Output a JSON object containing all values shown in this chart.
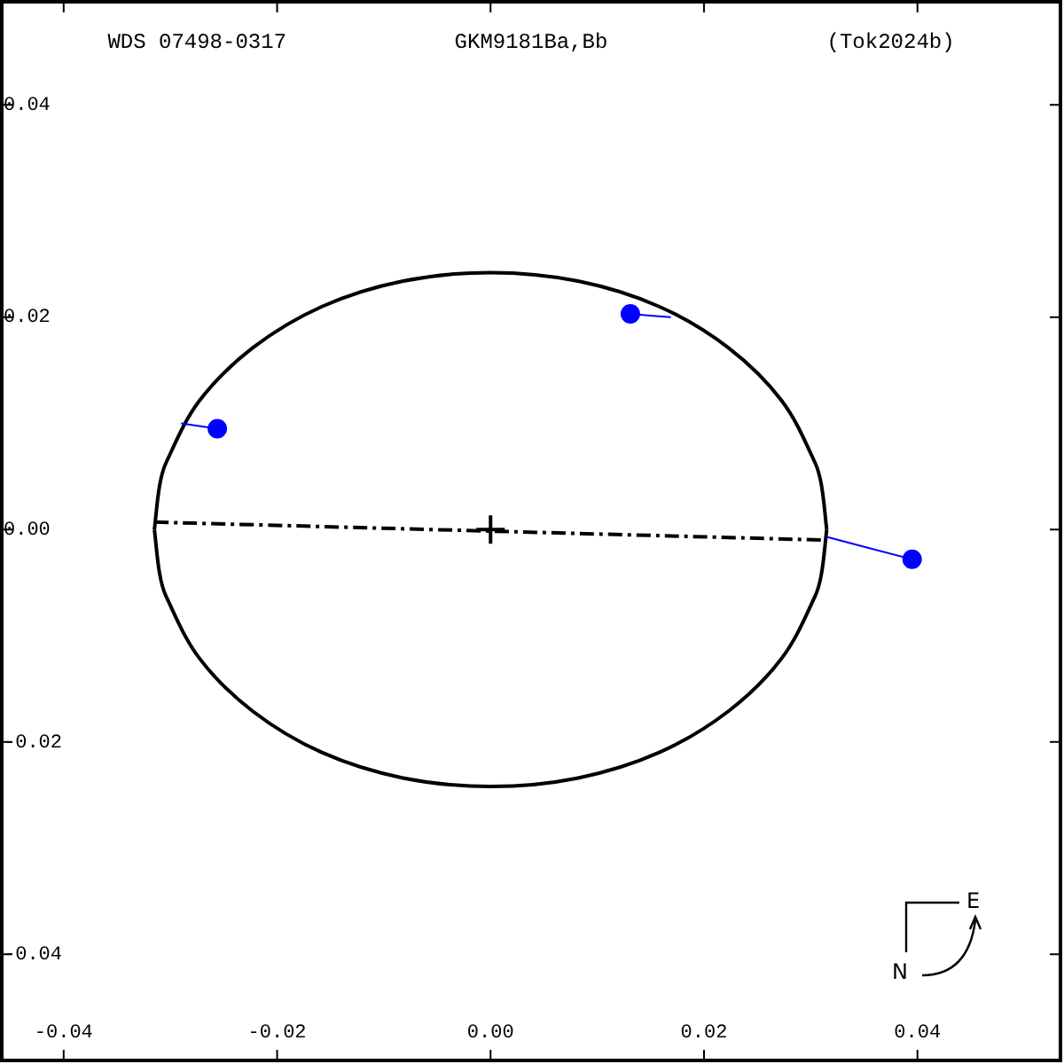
{
  "chart_data": {
    "type": "scatter",
    "annotations": [
      "WDS 07498-0317",
      "GKM9181Ba,Bb",
      "(Tok2024b)",
      "N",
      "E"
    ],
    "xlim": [
      -0.0458,
      0.0534
    ],
    "ylim": [
      -0.05,
      0.0497
    ],
    "xticks": [
      {
        "value": -0.04,
        "label": "-0.04"
      },
      {
        "value": -0.02,
        "label": "-0.02"
      },
      {
        "value": 0,
        "label": "0.00"
      },
      {
        "value": 0.02,
        "label": "0.02"
      },
      {
        "value": 0.04,
        "label": "0.04"
      }
    ],
    "yticks": [
      {
        "value": -0.04,
        "label": "-0.04"
      },
      {
        "value": -0.02,
        "label": "-0.02"
      },
      {
        "value": 0,
        "label": "0.00"
      },
      {
        "value": 0.02,
        "label": "0.02"
      },
      {
        "value": 0.04,
        "label": "0.04"
      }
    ],
    "legend": false,
    "series": [
      {
        "type": "line",
        "color": "#000000",
        "marker": "none",
        "line_style": "solid",
        "x": [
          -0.0315,
          -0.031,
          -0.0304,
          -0.0273,
          -0.0223,
          -0.0158,
          -0.0082,
          0,
          0.0082,
          0.0158,
          0.0223,
          0.0273,
          0.0304,
          0.031,
          0.0315
        ],
        "values": [
          0,
          0.0042,
          0.0063,
          0.0121,
          0.0171,
          0.021,
          0.0234,
          0.0242,
          0.0234,
          0.021,
          0.0171,
          0.0121,
          0.0063,
          0.0042,
          0
        ]
      },
      {
        "type": "line",
        "color": "#000000",
        "marker": "none",
        "line_style": "solid",
        "x": [
          -0.0315,
          -0.031,
          -0.0304,
          -0.0273,
          -0.0223,
          -0.0158,
          -0.0082,
          0,
          0.0082,
          0.0158,
          0.0223,
          0.0273,
          0.0304,
          0.031,
          0.0315
        ],
        "values": [
          0,
          -0.0042,
          -0.0063,
          -0.0121,
          -0.0171,
          -0.021,
          -0.0234,
          -0.0242,
          -0.0234,
          -0.021,
          -0.0171,
          -0.0121,
          -0.0063,
          -0.0042,
          0
        ]
      },
      {
        "type": "line",
        "color": "#000000",
        "marker": "none",
        "line_style": "dashed",
        "x": [
          -0.0315,
          0.0315
        ],
        "values": [
          0.0007,
          -0.001
        ]
      },
      {
        "type": "line",
        "color": "#0000ff",
        "marker": "none",
        "line_style": "solid",
        "x": [
          -0.0256,
          -0.029
        ],
        "values": [
          0.0095,
          0.01
        ]
      },
      {
        "type": "line",
        "color": "#0000ff",
        "marker": "none",
        "line_style": "solid",
        "x": [
          0.0131,
          0.0169
        ],
        "values": [
          0.0203,
          0.02
        ]
      },
      {
        "type": "line",
        "color": "#0000ff",
        "marker": "none",
        "line_style": "solid",
        "x": [
          0.0395,
          0.0315
        ],
        "values": [
          -0.0028,
          -0.0007
        ]
      },
      {
        "type": "scatter",
        "color": "#0000ff",
        "marker": "circle",
        "x": [
          -0.0256,
          0.0131,
          0.0395
        ],
        "values": [
          0.0095,
          0.0203,
          -0.0028
        ]
      },
      {
        "type": "scatter",
        "color": "#000000",
        "marker": "cross",
        "x": [
          0
        ],
        "values": [
          0
        ]
      }
    ]
  }
}
